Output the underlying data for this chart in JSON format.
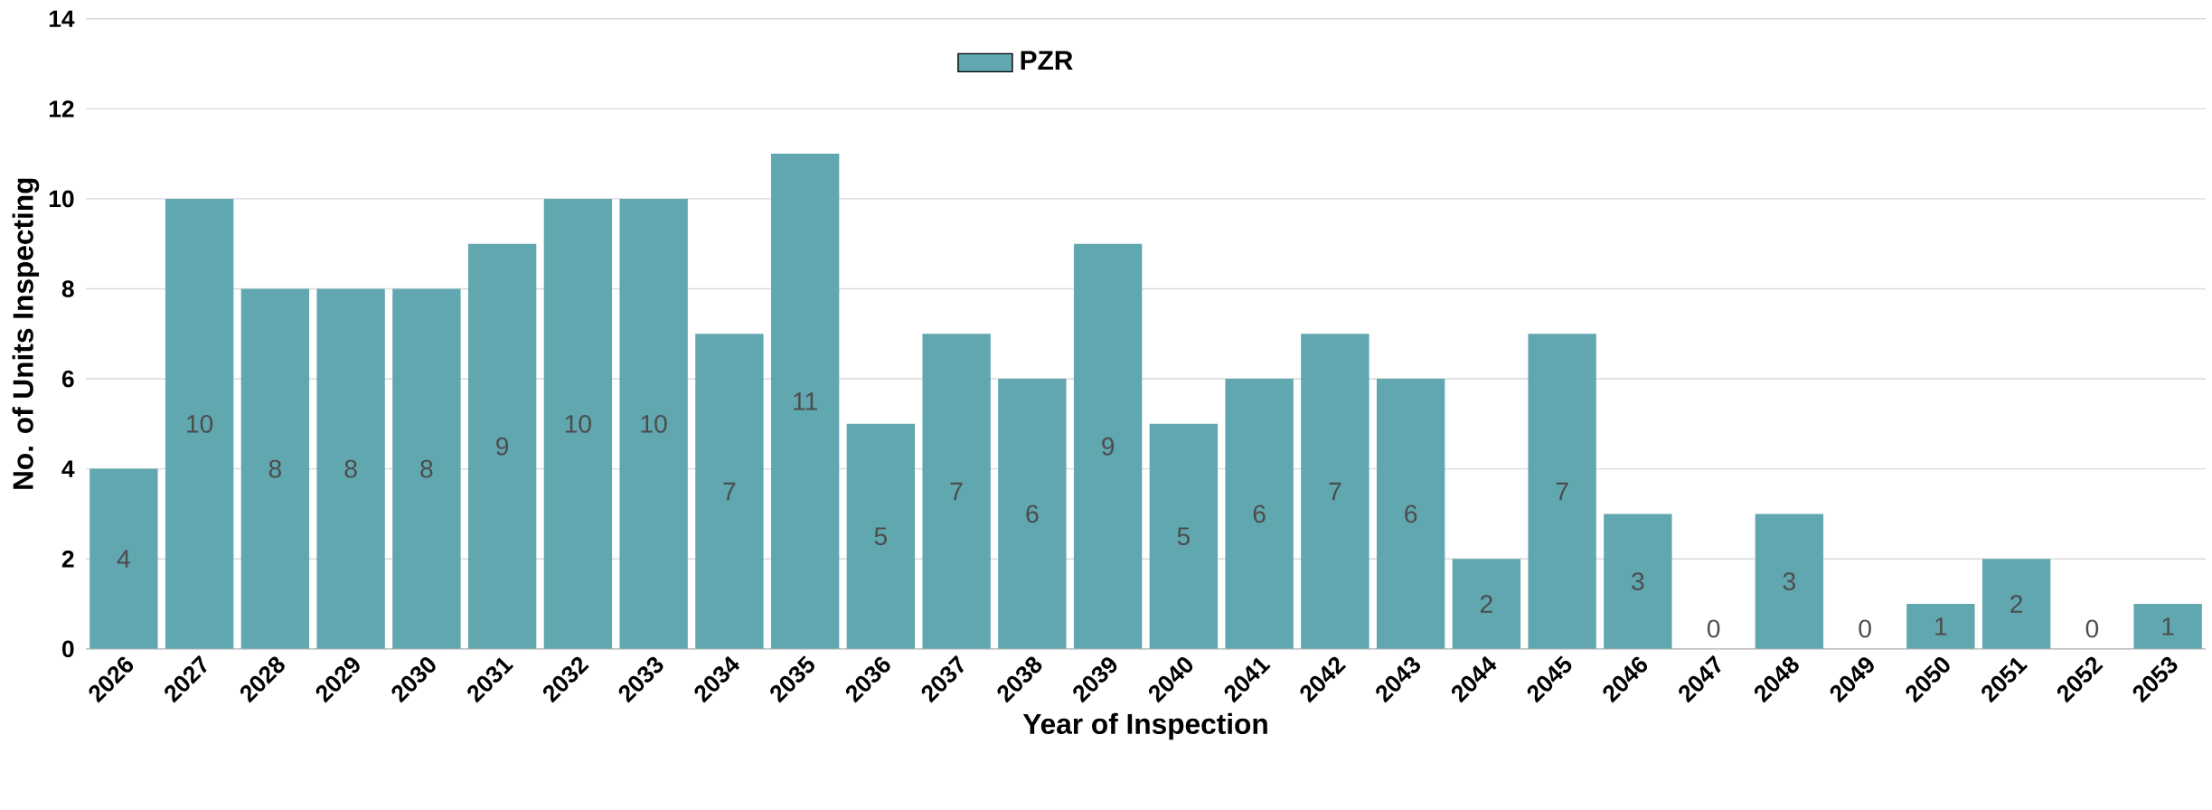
{
  "chart_data": {
    "type": "bar",
    "xlabel": "Year of Inspection",
    "ylabel": "No. of Units Inspecting",
    "categories": [
      "2026",
      "2027",
      "2028",
      "2029",
      "2030",
      "2031",
      "2032",
      "2033",
      "2034",
      "2035",
      "2036",
      "2037",
      "2038",
      "2039",
      "2040",
      "2041",
      "2042",
      "2043",
      "2044",
      "2045",
      "2046",
      "2047",
      "2048",
      "2049",
      "2050",
      "2051",
      "2052",
      "2053"
    ],
    "series": [
      {
        "name": "PZR",
        "color": "#61a7af",
        "values": [
          4,
          10,
          8,
          8,
          8,
          9,
          10,
          10,
          7,
          11,
          5,
          7,
          6,
          9,
          5,
          6,
          7,
          6,
          2,
          7,
          3,
          0,
          3,
          0,
          1,
          2,
          0,
          1
        ]
      }
    ],
    "ylim": [
      0,
      14
    ],
    "yticks": [
      0,
      2,
      4,
      6,
      8,
      10,
      12,
      14
    ],
    "grid": "y",
    "legend": "top",
    "data_labels": true
  }
}
